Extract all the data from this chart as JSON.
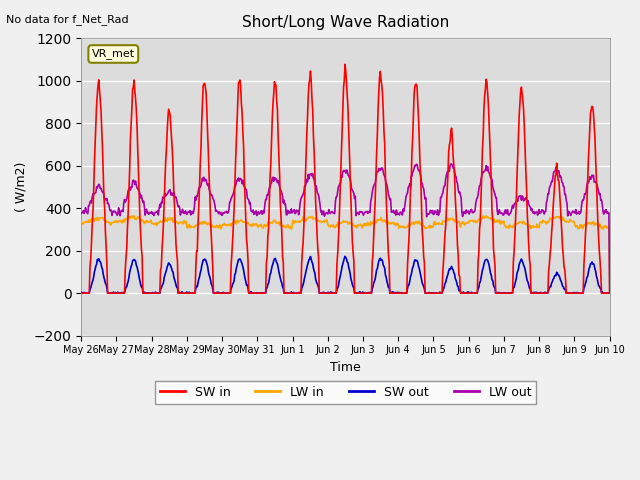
{
  "title": "Short/Long Wave Radiation",
  "ylabel": "( W/m2)",
  "xlabel": "Time",
  "no_data_text": "No data for f_Net_Rad",
  "station_label": "VR_met",
  "ylim": [
    -200,
    1200
  ],
  "yticks": [
    -200,
    0,
    200,
    400,
    600,
    800,
    1000,
    1200
  ],
  "x_labels": [
    "May 26",
    "May 27",
    "May 28",
    "May 29",
    "May 30",
    "May 31",
    "Jun 1",
    "Jun 2",
    "Jun 3",
    "Jun 4",
    "Jun 5",
    "Jun 6",
    "Jun 7",
    "Jun 8",
    "Jun 9",
    "Jun 10"
  ],
  "colors": {
    "SW_in": "#FF0000",
    "LW_in": "#FFA500",
    "SW_out": "#0000CC",
    "LW_out": "#AA00AA"
  },
  "legend_labels": [
    "SW in",
    "LW in",
    "SW out",
    "LW out"
  ],
  "plot_bg_color": "#DCDCDC",
  "fig_bg_color": "#F0F0F0",
  "num_days": 15,
  "points_per_day": 48
}
